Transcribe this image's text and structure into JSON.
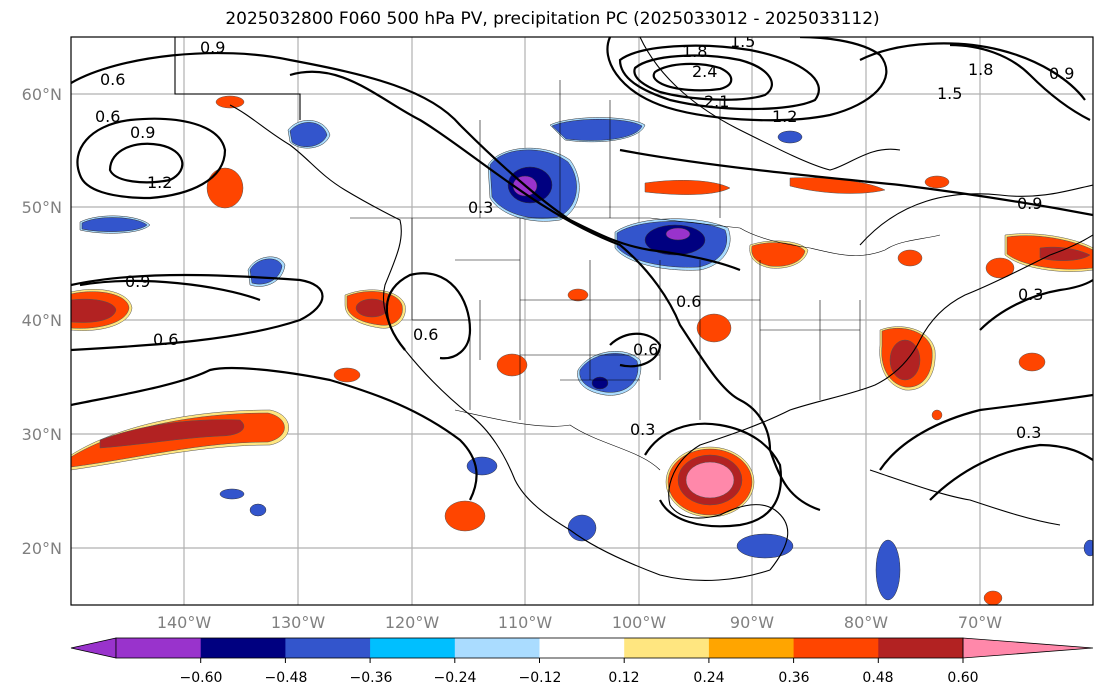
{
  "title": "2025032800 F060 500 hPa PV, precipitation PC (2025033012 - 2025033112)",
  "latitude_labels": [
    "60°N",
    "50°N",
    "40°N",
    "30°N",
    "20°N"
  ],
  "longitude_labels": [
    "140°W",
    "130°W",
    "120°W",
    "110°W",
    "100°W",
    "90°W",
    "80°W",
    "70°W"
  ],
  "colorbar": {
    "ticks": [
      "−0.60",
      "−0.48",
      "−0.36",
      "−0.24",
      "−0.12",
      "0.12",
      "0.24",
      "0.36",
      "0.48",
      "0.60"
    ],
    "colors": [
      "#9933cc",
      "#000080",
      "#3355cc",
      "#00bfff",
      "#aadcff",
      "#ffffff",
      "#ffe680",
      "#ffa500",
      "#ff4500",
      "#b22222",
      "#ff88aa"
    ]
  },
  "contour_labels": [
    "0.9",
    "0.6",
    "0.6",
    "0.9",
    "1.2",
    "0.3",
    "0.9",
    "0.6",
    "0.6",
    "0.6",
    "0.3",
    "0.6",
    "1.8",
    "2.4",
    "2.1",
    "1.5",
    "1.2",
    "1.5",
    "1.8",
    "0.9",
    "0.9",
    "0.3",
    "0.3"
  ]
}
